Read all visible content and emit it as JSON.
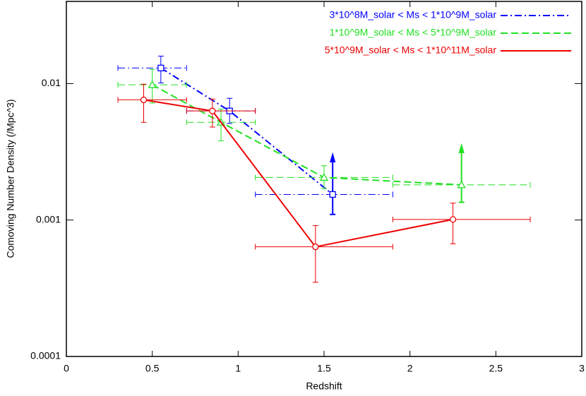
{
  "chart_data": {
    "type": "scatter",
    "xlabel": "Redshift",
    "ylabel": "Comoving Number Density (/Mpc^3)",
    "xlim": [
      0,
      3
    ],
    "ylim": [
      0.0001,
      0.04
    ],
    "ylog": true,
    "xticks": [
      0,
      0.5,
      1,
      1.5,
      2,
      2.5,
      3
    ],
    "yticks": [
      0.0001,
      0.001,
      0.01
    ],
    "legend": "upper right",
    "series": [
      {
        "name": "3*10^8M_solar < Ms < 1*10^9M_solar",
        "color": "#0000ff",
        "dash": "dashdot",
        "marker": "square",
        "x": [
          0.55,
          0.95,
          1.55
        ],
        "values": [
          0.013,
          0.0063,
          0.00154
        ],
        "x_low": [
          0.3,
          0.7,
          1.1
        ],
        "x_high": [
          0.7,
          1.1,
          1.9
        ],
        "y_low": [
          0.0101,
          0.0051,
          0.0011
        ],
        "y_high": [
          0.0159,
          0.0078,
          0.003
        ],
        "lower_limit": [
          false,
          false,
          true
        ]
      },
      {
        "name": "1*10^9M_solar < Ms < 5*10^9M_solar",
        "color": "#22e022",
        "dash": "dashed",
        "marker": "triangle",
        "x": [
          0.5,
          0.9,
          1.5,
          2.3
        ],
        "values": [
          0.0098,
          0.0052,
          0.00205,
          0.00181
        ],
        "x_low": [
          0.3,
          0.7,
          1.1,
          1.9
        ],
        "x_high": [
          0.7,
          1.1,
          1.9,
          2.7
        ],
        "y_low": [
          0.0072,
          0.0038,
          0.0017,
          0.00135
        ],
        "y_high": [
          0.0127,
          0.0065,
          0.0025,
          0.0035
        ],
        "lower_limit": [
          false,
          false,
          false,
          true
        ]
      },
      {
        "name": "5*10^9M_solar < Ms < 1*10^11M_solar",
        "color": "#ee0000",
        "dash": "solid",
        "marker": "circle",
        "x": [
          0.45,
          0.85,
          1.45,
          2.25
        ],
        "values": [
          0.0076,
          0.0063,
          0.000636,
          0.00101
        ],
        "x_low": [
          0.3,
          0.7,
          1.1,
          1.9
        ],
        "x_high": [
          0.7,
          1.1,
          1.9,
          2.7
        ],
        "y_low": [
          0.0052,
          0.0048,
          0.00035,
          0.00067
        ],
        "y_high": [
          0.0099,
          0.0077,
          0.00091,
          0.00133
        ],
        "lower_limit": [
          false,
          false,
          false,
          false
        ]
      }
    ]
  }
}
